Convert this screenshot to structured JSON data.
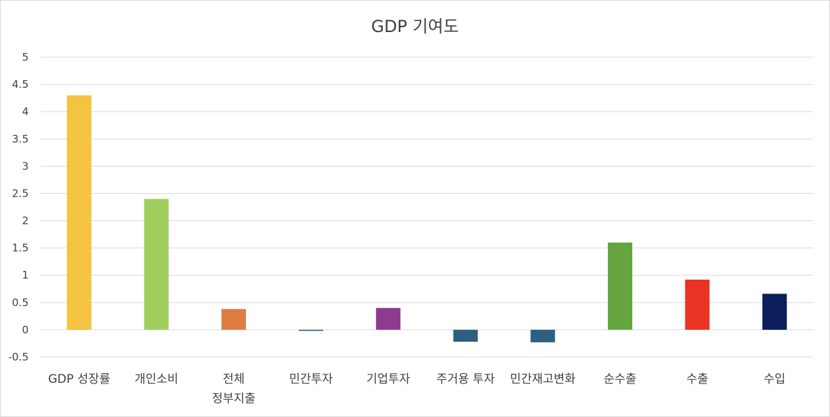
{
  "chart_data": {
    "type": "bar",
    "title": "GDP 기여도",
    "xlabel": "",
    "ylabel": "",
    "ylim": [
      -0.5,
      5
    ],
    "yticks": [
      -0.5,
      0,
      0.5,
      1,
      1.5,
      2,
      2.5,
      3,
      3.5,
      4,
      4.5,
      5
    ],
    "grid": true,
    "categories": [
      "GDP 성장률",
      "개인소비",
      "전체\n정부지출",
      "민간투자",
      "기업투자",
      "주거용 투자",
      "민간재고변화",
      "순수출",
      "수출",
      "수입"
    ],
    "values": [
      4.3,
      2.4,
      0.38,
      -0.02,
      0.4,
      -0.22,
      -0.23,
      1.6,
      0.92,
      0.66
    ],
    "colors": [
      "#F5C342",
      "#A0CF5E",
      "#DF7C42",
      "#2E5F80",
      "#8E3A8F",
      "#2E5F80",
      "#2E5F80",
      "#64A53F",
      "#EA3323",
      "#0C1F5C"
    ]
  }
}
